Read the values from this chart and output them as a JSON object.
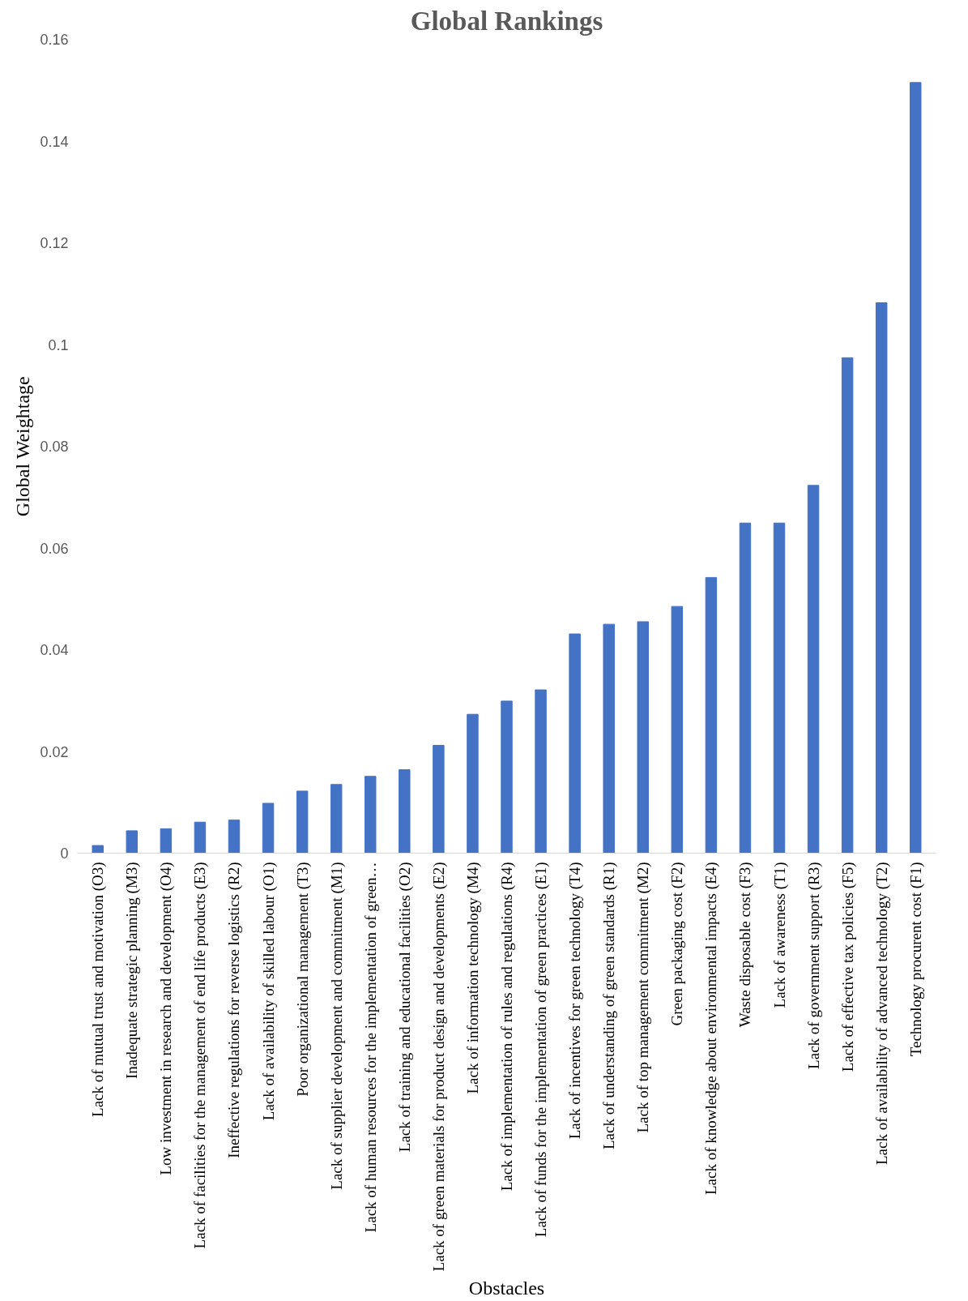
{
  "chart_data": {
    "type": "bar",
    "title": "Global Rankings",
    "xlabel": "Obstacles",
    "ylabel": "Global Weightage",
    "categories": [
      "Lack of mutual trust and motivation (O3)",
      "Inadequate strategic planning (M3)",
      "Low investment in research and development (O4)",
      "Lack of facilities for the management of end life products (E3)",
      "Ineffective regulations for reverse logistics (R2)",
      "Lack of availability of skilled labour (O1)",
      "Poor organizational management (T3)",
      "Lack of supplier development and commitment (M1)",
      "Lack of human resources for the implementation of green…",
      "Lack of training and educational facilities (O2)",
      "Lack of green materials for product design and developments (E2)",
      "Lack of information technology (M4)",
      "Lack of implementation of rules and regulations (R4)",
      "Lack of funds for the implementation of green practices (E1)",
      "Lack of incentives for green technology (T4)",
      "Lack of understanding of green standards (R1)",
      "Lack of top management commitment (M2)",
      "Green packaging cost (F2)",
      "Lack of knowledge about environmental impacts (E4)",
      "Waste disposable cost (F3)",
      "Lack of awareness (T1)",
      "Lack of government support (R3)",
      "Lack of effective tax policies (F5)",
      "Lack of availability of advanced technology (T2)",
      "Technology procurent cost (F1)"
    ],
    "values": [
      0.0015,
      0.0044,
      0.0048,
      0.0061,
      0.0065,
      0.0098,
      0.0122,
      0.0135,
      0.0151,
      0.0164,
      0.0212,
      0.0273,
      0.0299,
      0.0321,
      0.0431,
      0.045,
      0.0455,
      0.0485,
      0.0542,
      0.0649,
      0.0649,
      0.0723,
      0.0974,
      0.1082,
      0.1515
    ],
    "color": "#4472c4",
    "ylim": [
      0,
      0.16
    ],
    "yticks": [
      0,
      0.02,
      0.04,
      0.06,
      0.08,
      0.1,
      0.12,
      0.14,
      0.16
    ],
    "grid": false
  }
}
